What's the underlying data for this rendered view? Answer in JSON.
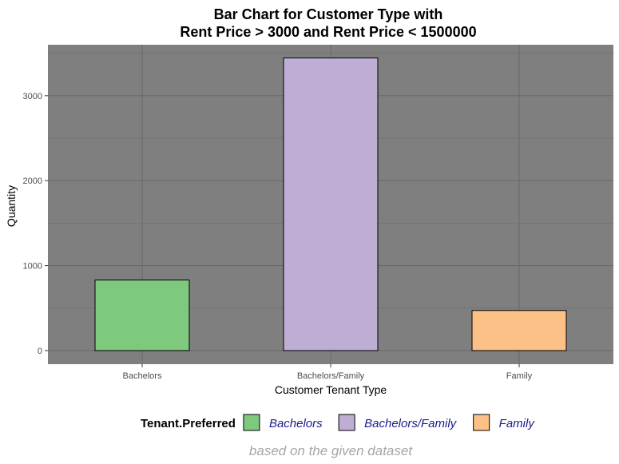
{
  "chart_data": {
    "type": "bar",
    "title_line1": "Bar Chart for Customer Type with",
    "title_line2": "Rent Price > 3000 and Rent Price < 1500000",
    "xlabel": "Customer Tenant Type",
    "ylabel": "Quantity",
    "categories": [
      "Bachelors",
      "Bachelors/Family",
      "Family"
    ],
    "values": [
      830,
      3444,
      472
    ],
    "colors": [
      "#7fc97f",
      "#beaed4",
      "#fdc086"
    ],
    "ylim": [
      -160,
      3600
    ],
    "yticks": [
      0,
      1000,
      2000,
      3000
    ],
    "ytick_labels": [
      "0",
      "1000",
      "2000",
      "3000"
    ],
    "panel_background": "#7f7f7f",
    "grid": true,
    "legend": {
      "title": "Tenant.Preferred",
      "position": "bottom",
      "entries": [
        "Bachelors",
        "Bachelors/Family",
        "Family"
      ]
    },
    "caption": "based on the given dataset"
  }
}
